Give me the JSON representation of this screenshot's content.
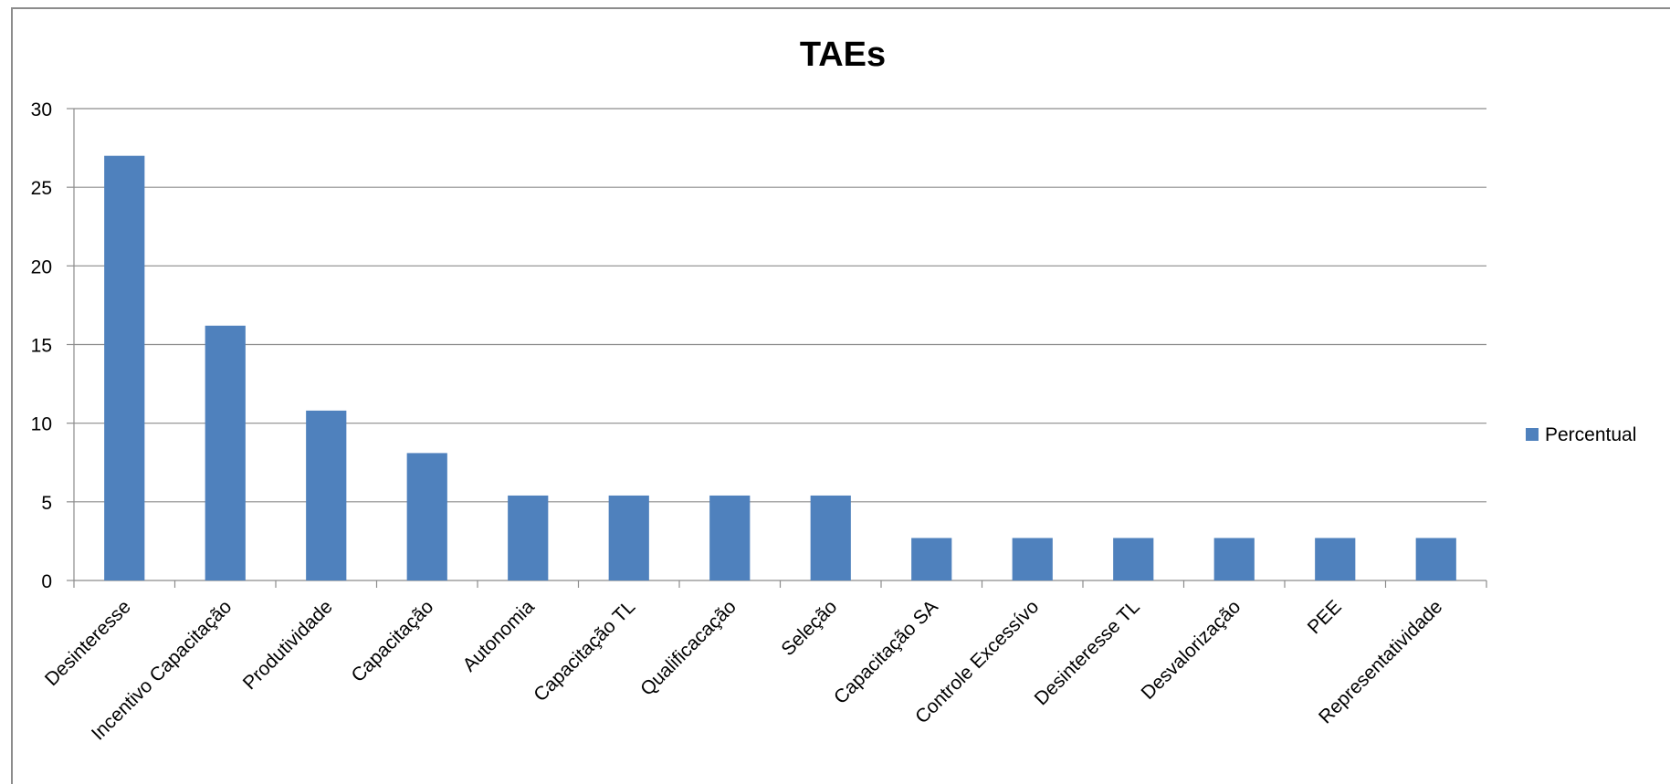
{
  "chart_data": {
    "type": "bar",
    "title": "TAEs",
    "xlabel": "",
    "ylabel": "",
    "categories": [
      "Desinteresse",
      "Incentivo Capacitação",
      "Produtividade",
      "Capacitação",
      "Autonomia",
      "Capacitação TL",
      "Qualificacação",
      "Seleção",
      "Capacitação SA",
      "Controle Excessívo",
      "Desinteresse TL",
      "Desvalorização",
      "PEE",
      "Representatividade"
    ],
    "series": [
      {
        "name": "Percentual",
        "color": "#4f81bd",
        "values": [
          27.0,
          16.2,
          10.8,
          8.1,
          5.4,
          5.4,
          5.4,
          5.4,
          2.7,
          2.7,
          2.7,
          2.7,
          2.7,
          2.7
        ]
      }
    ],
    "ylim": [
      0,
      30
    ],
    "yticks": [
      0,
      5,
      10,
      15,
      20,
      25,
      30
    ],
    "grid": true,
    "legend_position": "right"
  }
}
